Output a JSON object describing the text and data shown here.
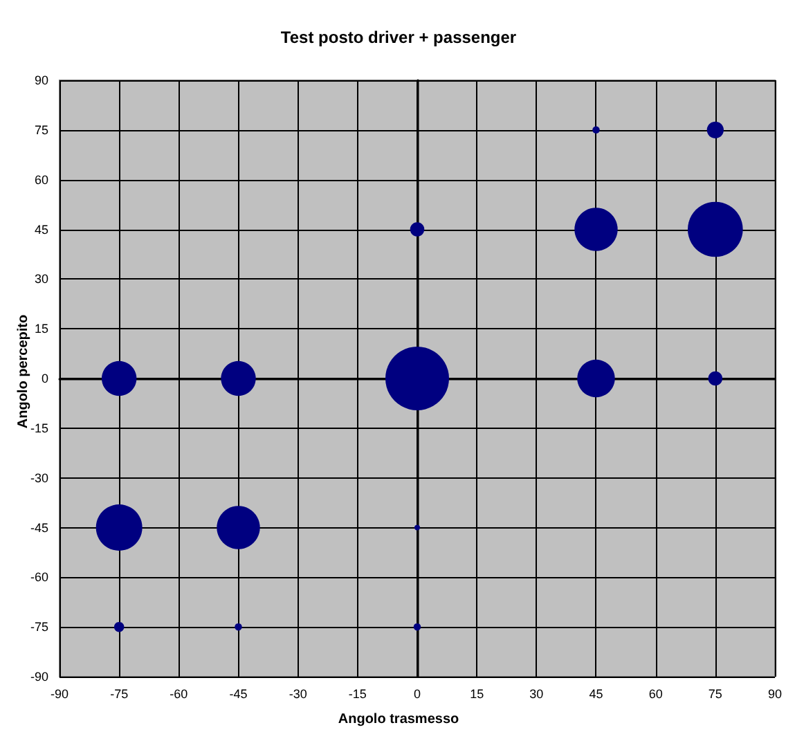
{
  "chart_data": {
    "type": "bubble",
    "title": "Test posto driver + passenger",
    "xlabel": "Angolo trasmesso",
    "ylabel": "Angolo percepito",
    "x": [
      -75,
      -45,
      0,
      45,
      75,
      -75,
      -45,
      0,
      -75,
      -45,
      0,
      0,
      45,
      75,
      45,
      75
    ],
    "series": [
      {
        "color": "#000080",
        "values": [
          0,
          0,
          0,
          0,
          0,
          -45,
          -45,
          -45,
          -75,
          -75,
          -75,
          45,
          45,
          45,
          75,
          75
        ],
        "sizes": [
          0.3,
          0.3,
          1,
          0.35,
          0.05,
          0.53,
          0.46,
          0.008,
          0.025,
          0.013,
          0.013,
          0.05,
          0.46,
          0.75,
          0.013,
          0.07
        ]
      }
    ],
    "xlim": [
      -90,
      90
    ],
    "xticks": [
      -90,
      -75,
      -60,
      -45,
      -30,
      -15,
      0,
      15,
      30,
      45,
      60,
      75,
      90
    ],
    "ylim": [
      -90,
      90
    ],
    "yticks": [
      -90,
      -75,
      -60,
      -45,
      -30,
      -15,
      0,
      15,
      30,
      45,
      60,
      75,
      90
    ],
    "grid": true
  }
}
